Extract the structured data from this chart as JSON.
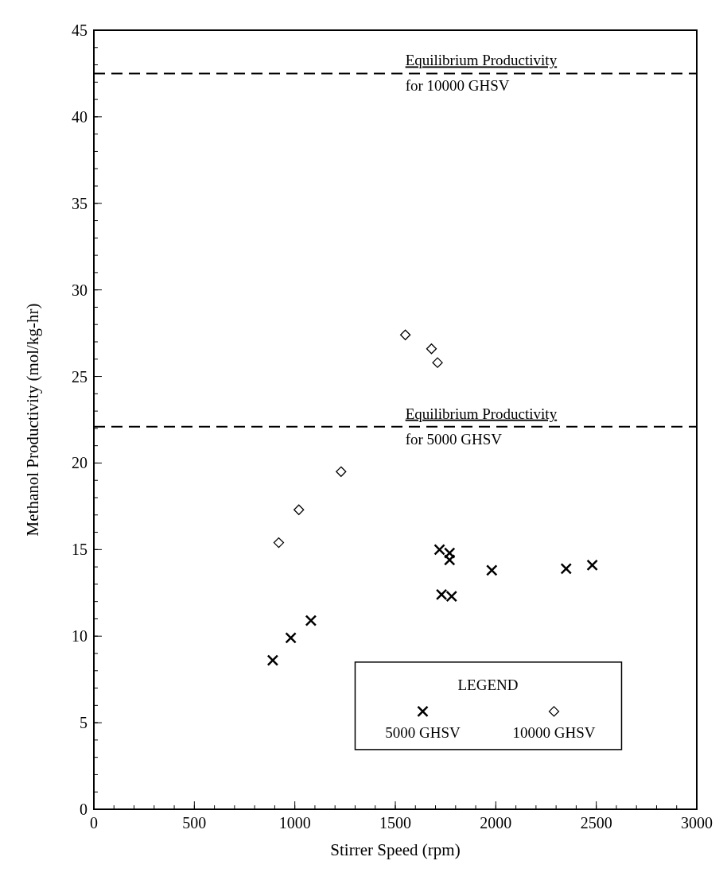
{
  "chart_data": {
    "type": "scatter",
    "xlabel": "Stirrer Speed (rpm)",
    "ylabel": "Methanol Productivity (mol/kg-hr)",
    "xlim": [
      0,
      3000
    ],
    "xticks": [
      0,
      500,
      1000,
      1500,
      2000,
      2500,
      3000
    ],
    "ylim": [
      0,
      45
    ],
    "yticks": [
      0,
      5,
      10,
      15,
      20,
      25,
      30,
      35,
      40,
      45
    ],
    "grid": false,
    "legend": "bottom right",
    "legend_title": "LEGEND",
    "series": [
      {
        "name": "5000 GHSV",
        "color": "#000000",
        "marker": "cross",
        "x": [
          890,
          980,
          1080,
          1720,
          1770,
          1770,
          1730,
          1780,
          1980,
          2350,
          2480
        ],
        "values": [
          8.6,
          9.9,
          10.9,
          15.0,
          14.8,
          14.4,
          12.4,
          12.3,
          13.8,
          13.9,
          14.1
        ]
      },
      {
        "name": "10000 GHSV",
        "color": "#000000",
        "marker": "diamond",
        "x": [
          920,
          1020,
          1230,
          1550,
          1680,
          1710
        ],
        "values": [
          15.4,
          17.3,
          19.5,
          27.4,
          26.6,
          25.8
        ]
      }
    ],
    "ref_lines": [
      {
        "axis": "y",
        "value": 42.5,
        "label": "Equilibrium Productivity for 10000 GHSV",
        "line_style": "dashed",
        "color": "#000000"
      },
      {
        "axis": "y",
        "value": 22.1,
        "label": "Equilibrium Productivity for 5000 GHSV",
        "line_style": "dashed",
        "color": "#000000"
      }
    ]
  }
}
